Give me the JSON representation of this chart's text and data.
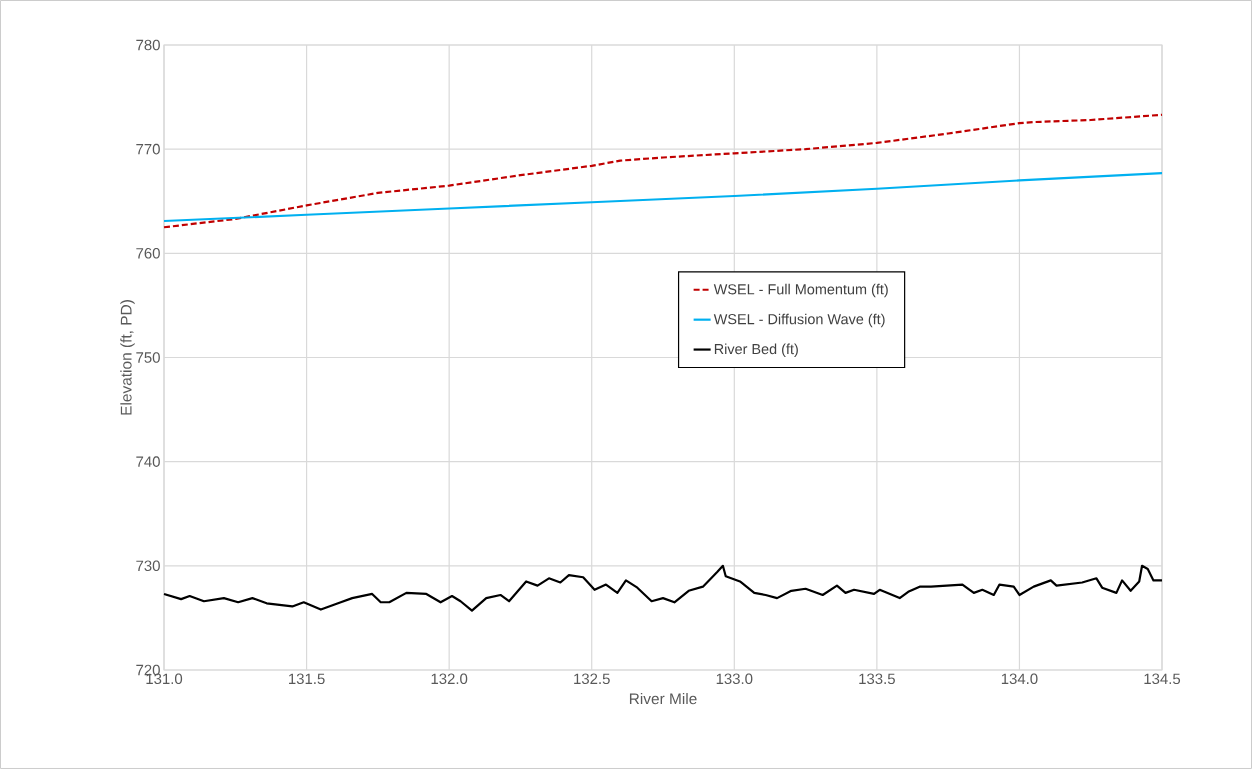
{
  "chart_data": {
    "type": "line",
    "xlabel": "River Mile",
    "ylabel": "Elevation (ft, PD)",
    "xlim": [
      131.0,
      134.5
    ],
    "ylim": [
      720,
      780
    ],
    "xticks": [
      {
        "value": 131.0,
        "label": "131.0"
      },
      {
        "value": 131.5,
        "label": "131.5"
      },
      {
        "value": 132.0,
        "label": "132.0"
      },
      {
        "value": 132.5,
        "label": "132.5"
      },
      {
        "value": 133.0,
        "label": "133.0"
      },
      {
        "value": 133.5,
        "label": "133.5"
      },
      {
        "value": 134.0,
        "label": "134.0"
      },
      {
        "value": 134.5,
        "label": "134.5"
      }
    ],
    "yticks": [
      720,
      730,
      740,
      750,
      760,
      770,
      780
    ],
    "grid": true,
    "legend": "center right",
    "marker": "none",
    "series": [
      {
        "name": "WSEL - Full Momentum (ft)",
        "color": "#c00000",
        "line_style": "dashed",
        "x": [
          131.0,
          131.25,
          131.5,
          131.75,
          132.0,
          132.25,
          132.5,
          132.6,
          132.75,
          133.0,
          133.25,
          133.5,
          133.75,
          134.0,
          134.05,
          134.25,
          134.5
        ],
        "values": [
          762.5,
          763.3,
          764.6,
          765.8,
          766.5,
          767.5,
          768.4,
          768.9,
          769.2,
          769.6,
          770.0,
          770.6,
          771.5,
          772.5,
          772.6,
          772.8,
          773.3
        ]
      },
      {
        "name": "WSEL - Diffusion Wave (ft)",
        "color": "#00b0f0",
        "line_style": "solid",
        "x": [
          131.0,
          131.5,
          132.0,
          132.5,
          133.0,
          133.5,
          134.0,
          134.5
        ],
        "values": [
          763.1,
          763.7,
          764.3,
          764.9,
          765.5,
          766.2,
          767.0,
          767.7
        ]
      },
      {
        "name": "River Bed (ft)",
        "color": "#000000",
        "line_style": "solid",
        "x": [
          131.0,
          131.06,
          131.09,
          131.14,
          131.21,
          131.26,
          131.31,
          131.36,
          131.45,
          131.49,
          131.55,
          131.62,
          131.66,
          131.73,
          131.76,
          131.79,
          131.85,
          131.92,
          131.97,
          132.01,
          132.04,
          132.08,
          132.13,
          132.18,
          132.21,
          132.27,
          132.31,
          132.35,
          132.39,
          132.42,
          132.47,
          132.51,
          132.55,
          132.59,
          132.62,
          132.66,
          132.71,
          132.75,
          132.79,
          132.84,
          132.89,
          132.94,
          132.96,
          132.97,
          133.02,
          133.07,
          133.11,
          133.15,
          133.2,
          133.25,
          133.31,
          133.36,
          133.39,
          133.42,
          133.49,
          133.51,
          133.58,
          133.61,
          133.65,
          133.69,
          133.8,
          133.84,
          133.87,
          133.91,
          133.93,
          133.98,
          134.0,
          134.05,
          134.11,
          134.13,
          134.22,
          134.27,
          134.29,
          134.34,
          134.36,
          134.39,
          134.42,
          134.43,
          134.45,
          134.47,
          134.5
        ],
        "values": [
          727.3,
          726.8,
          727.1,
          726.6,
          726.9,
          726.5,
          726.9,
          726.4,
          726.1,
          726.5,
          725.8,
          726.5,
          726.9,
          727.3,
          726.5,
          726.5,
          727.4,
          727.3,
          726.5,
          727.1,
          726.6,
          725.7,
          726.9,
          727.2,
          726.6,
          728.5,
          728.1,
          728.8,
          728.4,
          729.1,
          728.9,
          727.7,
          728.2,
          727.4,
          728.6,
          727.9,
          726.6,
          726.9,
          726.5,
          727.6,
          728.0,
          729.4,
          730.0,
          729.0,
          728.5,
          727.4,
          727.2,
          726.9,
          727.6,
          727.8,
          727.2,
          728.1,
          727.4,
          727.7,
          727.3,
          727.7,
          726.9,
          727.5,
          728.0,
          728.0,
          728.2,
          727.4,
          727.7,
          727.2,
          728.2,
          728.0,
          727.2,
          728.0,
          728.6,
          728.1,
          728.4,
          728.8,
          727.9,
          727.4,
          728.6,
          727.6,
          728.5,
          730.0,
          729.7,
          728.6,
          728.6
        ]
      }
    ]
  }
}
